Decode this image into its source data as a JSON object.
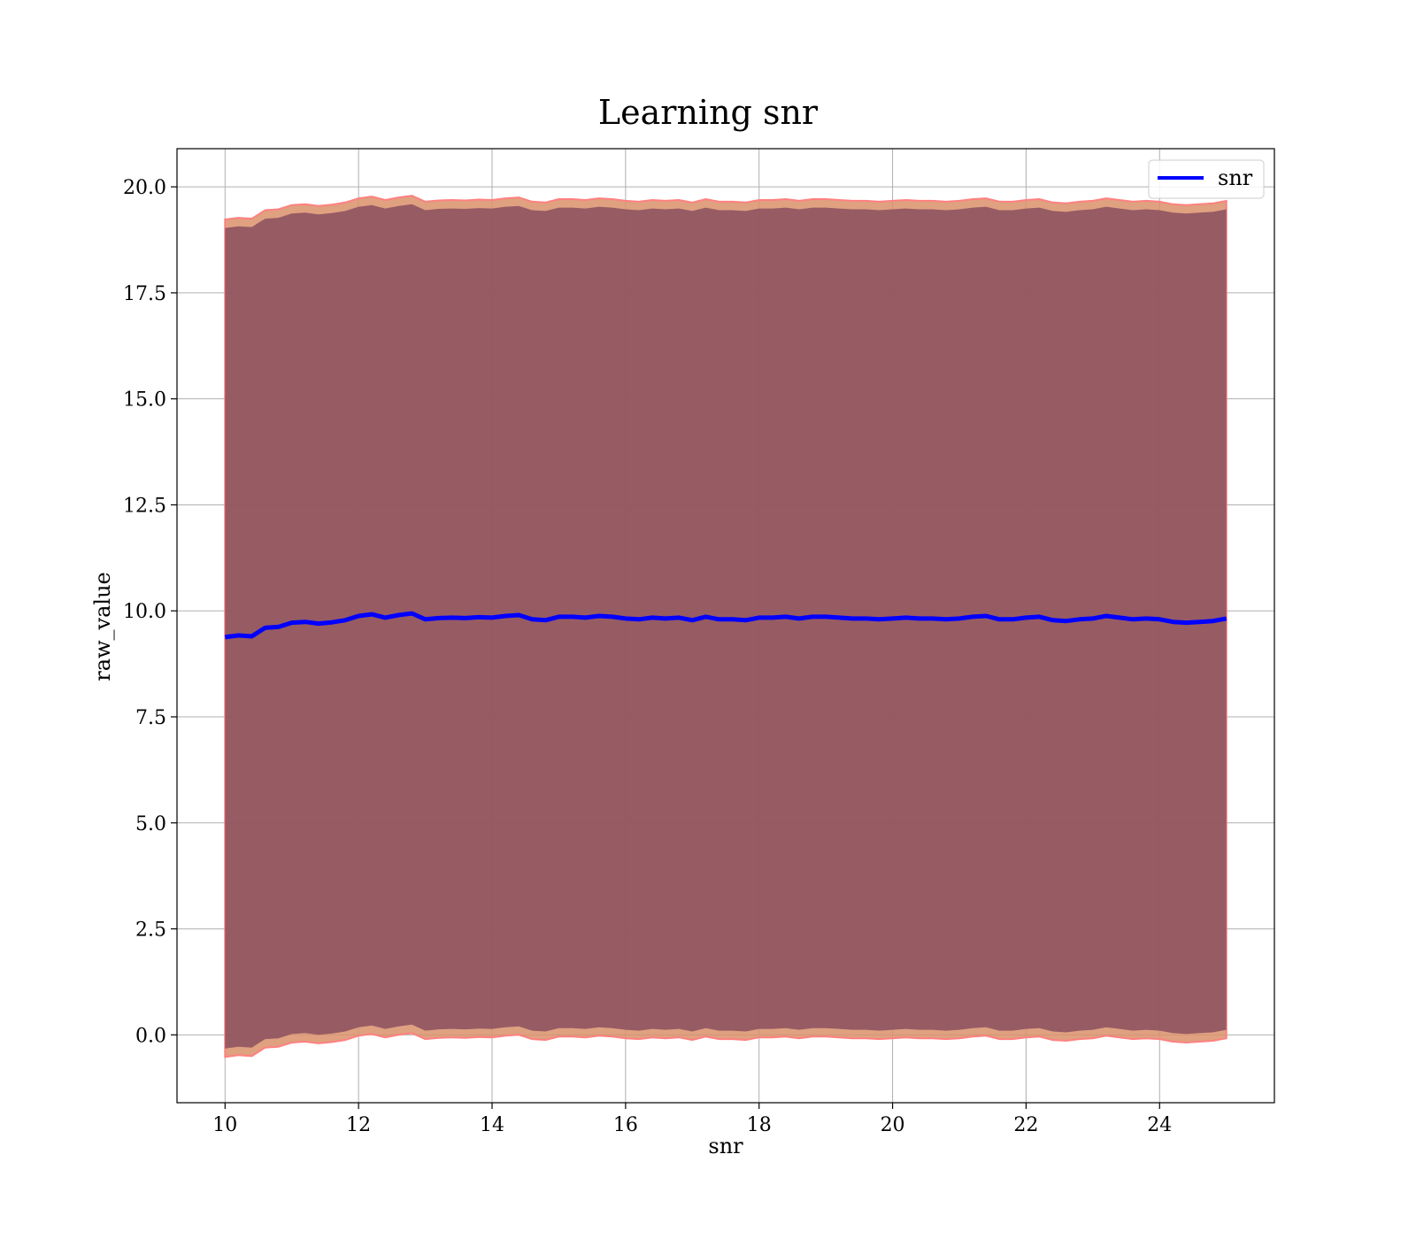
{
  "chart_data": {
    "type": "line",
    "title": "Learning snr",
    "xlabel": "snr",
    "ylabel": "raw_value",
    "xlim": [
      9.28,
      25.72
    ],
    "ylim": [
      -1.6,
      20.9
    ],
    "xticks": [
      10,
      12,
      14,
      16,
      18,
      20,
      22,
      24
    ],
    "yticks": [
      0.0,
      2.5,
      5.0,
      7.5,
      10.0,
      12.5,
      15.0,
      17.5,
      20.0
    ],
    "grid": true,
    "legend": {
      "position": "top-right",
      "entries": [
        "snr"
      ]
    },
    "colors": {
      "line": "#0000ff",
      "inner_band": "#8b4f5f",
      "outer_band": "#d9906a",
      "outer_edge": "#ff8080"
    },
    "series": [
      {
        "name": "snr",
        "x": [
          10.0,
          10.2,
          10.4,
          10.5,
          10.6,
          10.8,
          11.0,
          11.2,
          11.4,
          11.6,
          11.8,
          12.0,
          12.2,
          12.4,
          12.6,
          12.8,
          13.0,
          13.2,
          13.4,
          13.6,
          13.8,
          14.0,
          14.2,
          14.4,
          14.6,
          14.8,
          15.0,
          15.2,
          15.4,
          15.6,
          15.8,
          16.0,
          16.2,
          16.4,
          16.6,
          16.8,
          17.0,
          17.2,
          17.4,
          17.6,
          17.8,
          18.0,
          18.2,
          18.4,
          18.6,
          18.8,
          19.0,
          19.2,
          19.4,
          19.6,
          19.8,
          20.0,
          20.2,
          20.4,
          20.6,
          20.8,
          21.0,
          21.2,
          21.4,
          21.6,
          21.8,
          22.0,
          22.2,
          22.4,
          22.6,
          22.8,
          23.0,
          23.2,
          23.4,
          23.6,
          23.8,
          24.0,
          24.2,
          24.4,
          24.6,
          24.8,
          25.0
        ],
        "y": [
          9.38,
          9.42,
          9.4,
          9.5,
          9.6,
          9.62,
          9.72,
          9.74,
          9.7,
          9.73,
          9.78,
          9.88,
          9.92,
          9.84,
          9.9,
          9.94,
          9.8,
          9.83,
          9.84,
          9.83,
          9.85,
          9.84,
          9.88,
          9.9,
          9.8,
          9.78,
          9.86,
          9.86,
          9.84,
          9.88,
          9.86,
          9.82,
          9.8,
          9.84,
          9.82,
          9.84,
          9.78,
          9.86,
          9.8,
          9.8,
          9.78,
          9.84,
          9.84,
          9.86,
          9.82,
          9.86,
          9.86,
          9.84,
          9.82,
          9.82,
          9.8,
          9.82,
          9.84,
          9.82,
          9.82,
          9.8,
          9.82,
          9.86,
          9.88,
          9.8,
          9.8,
          9.84,
          9.86,
          9.78,
          9.76,
          9.8,
          9.82,
          9.88,
          9.84,
          9.8,
          9.82,
          9.8,
          9.74,
          9.72,
          9.74,
          9.76,
          9.82
        ],
        "band_inner": {
          "upper_offset": 9.65,
          "lower_offset": 9.7
        },
        "band_outer": {
          "upper_offset": 9.85,
          "lower_offset": 9.9
        }
      }
    ]
  }
}
